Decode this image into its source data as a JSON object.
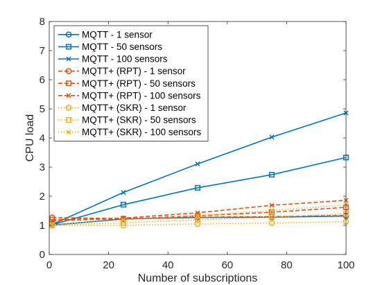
{
  "chart_data": {
    "type": "line",
    "xlabel": "Number of subscriptions",
    "ylabel": "CPU load",
    "xlim": [
      0,
      100
    ],
    "ylim": [
      0,
      8
    ],
    "xticks": [
      0,
      20,
      40,
      60,
      80,
      100
    ],
    "yticks": [
      0,
      1,
      2,
      3,
      4,
      5,
      6,
      7,
      8
    ],
    "grid": false,
    "legend_position": "top-left",
    "x": [
      1,
      25,
      50,
      75,
      100
    ],
    "series": [
      {
        "name": "MQTT - 1 sensor",
        "color": "#0072BD",
        "dash": "solid",
        "marker": "circle",
        "values": [
          1.01,
          1.22,
          1.27,
          1.28,
          1.32
        ]
      },
      {
        "name": "MQTT - 50 sensors",
        "color": "#0072BD",
        "dash": "solid",
        "marker": "square",
        "values": [
          1.02,
          1.71,
          2.29,
          2.74,
          3.33
        ]
      },
      {
        "name": "MQTT - 100 sensors",
        "color": "#0072BD",
        "dash": "solid",
        "marker": "x",
        "values": [
          1.03,
          2.13,
          3.11,
          4.03,
          4.86
        ]
      },
      {
        "name": "MQTT+ (RPT) - 1 sensor",
        "color": "#D95319",
        "dash": "dashed",
        "marker": "circle",
        "values": [
          1.27,
          1.23,
          1.28,
          1.3,
          1.34
        ]
      },
      {
        "name": "MQTT+ (RPT) - 50 sensors",
        "color": "#D95319",
        "dash": "dashed",
        "marker": "square",
        "values": [
          1.2,
          1.22,
          1.33,
          1.45,
          1.62
        ]
      },
      {
        "name": "MQTT+ (RPT) - 100 sensors",
        "color": "#D95319",
        "dash": "dashed",
        "marker": "x",
        "values": [
          1.15,
          1.25,
          1.43,
          1.69,
          1.86
        ]
      },
      {
        "name": "MQTT+ (SKR) - 1 sensor",
        "color": "#EDB120",
        "dash": "dotted",
        "marker": "circle",
        "values": [
          1.0,
          1.0,
          1.05,
          1.08,
          1.13
        ]
      },
      {
        "name": "MQTT+ (SKR) - 50 sensors",
        "color": "#EDB120",
        "dash": "dotted",
        "marker": "square",
        "values": [
          1.01,
          1.09,
          1.19,
          1.28,
          1.4
        ]
      },
      {
        "name": "MQTT+ (SKR) - 100 sensors",
        "color": "#EDB120",
        "dash": "dotted",
        "marker": "x",
        "values": [
          1.02,
          1.19,
          1.33,
          1.51,
          1.7
        ]
      }
    ]
  }
}
